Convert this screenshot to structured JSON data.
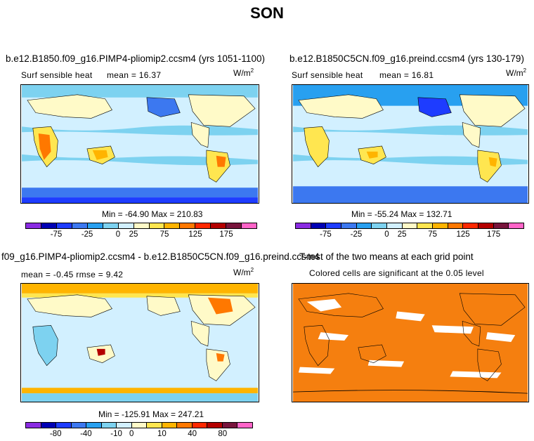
{
  "title": "SON",
  "panels": [
    {
      "title": "b.e12.B1850.f09_g16.PIMP4-pliomip2.ccsm4 (yrs 1051-1100)",
      "variable": "Surf sensible heat",
      "stats": "mean =   16.37",
      "units": "W/m",
      "units_exp": "2",
      "minmax": "Min = -64.90 Max = 210.83",
      "colorbar_ticks": [
        "-75",
        "-25",
        "0",
        "25",
        "75",
        "125",
        "175"
      ]
    },
    {
      "title": "b.e12.B1850C5CN.f09_g16.preind.ccsm4 (yrs 130-179)",
      "variable": "Surf sensible heat",
      "stats": "mean =   16.81",
      "units": "W/m",
      "units_exp": "2",
      "minmax": "Min = -55.24 Max = 132.71",
      "colorbar_ticks": [
        "-75",
        "-25",
        "0",
        "25",
        "75",
        "125",
        "175"
      ]
    },
    {
      "title": "f09_g16.PIMP4-pliomip2.ccsm4 - b.e12.B1850C5CN.f09_g16.preind.ccsm4",
      "stats": "mean =  -0.45     rmse =    9.42",
      "units": "W/m",
      "units_exp": "2",
      "minmax": "Min = -125.91 Max = 247.21",
      "colorbar_ticks": [
        "-80",
        "-40",
        "-10",
        "0",
        "10",
        "40",
        "80"
      ]
    },
    {
      "title": "T-test of the two means at each grid point",
      "subtitle": "Colored cells are significant at the 0.05 level"
    }
  ],
  "colors": {
    "colorbar": [
      "#8a2be2",
      "#0000b4",
      "#1e3cff",
      "#3c78f0",
      "#28a0f0",
      "#7dd2f0",
      "#d2f0ff",
      "#fffac8",
      "#ffe650",
      "#ffb400",
      "#ff7800",
      "#ff2800",
      "#b40000",
      "#78143c",
      "#ff64c8"
    ],
    "ocean": "#d2f0ff",
    "land": "#ffe650",
    "significant": "#f57f0f"
  }
}
